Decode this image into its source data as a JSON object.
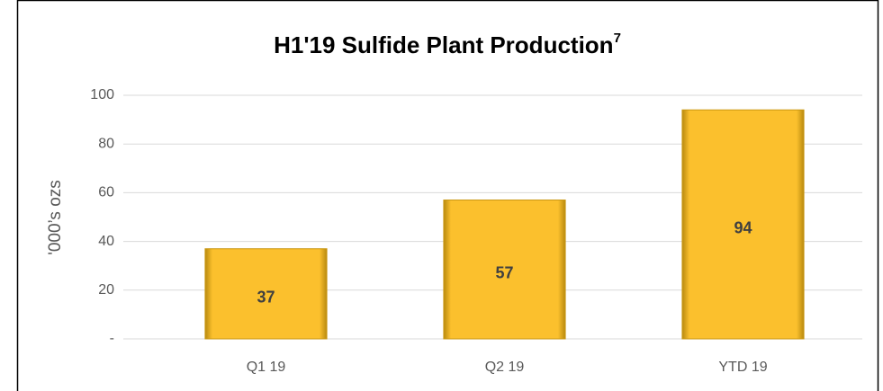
{
  "chart_data": {
    "type": "bar",
    "title": "H1'19 Sulfide Plant Production",
    "title_superscript": "7",
    "y_label": "'000’s ozs",
    "categories": [
      "Q1 19",
      "Q2 19",
      "YTD 19"
    ],
    "values": [
      37,
      57,
      94
    ],
    "color": "#fbc02d",
    "ylim": [
      0,
      100
    ],
    "yticks": [
      {
        "value": 0,
        "label": "-"
      },
      20,
      40,
      60,
      80,
      100
    ],
    "grid": true
  }
}
